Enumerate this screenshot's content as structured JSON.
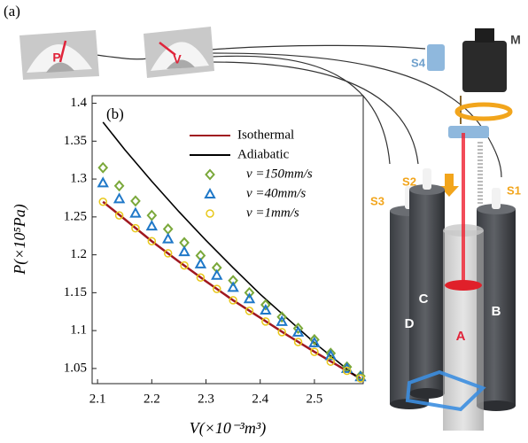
{
  "figure": {
    "panel_a": "(a)",
    "gauge_p": "P",
    "gauge_v": "V",
    "motor": "M",
    "sensor_4": "S4",
    "sensor_3": "S3",
    "sensor_2": "S2",
    "sensor_1": "S1",
    "cyl_d": "D",
    "cyl_c": "C",
    "cyl_a": "A",
    "cyl_b": "B"
  },
  "chart_data": {
    "type": "line",
    "annotation": "(b)",
    "x_label": "V(×10⁻³m³)",
    "y_label": "P(×10⁵Pa)",
    "xlim": [
      2.09,
      2.59
    ],
    "xticks": [
      2.1,
      2.2,
      2.3,
      2.4,
      2.5
    ],
    "ylim": [
      1.03,
      1.41
    ],
    "yticks": [
      1.05,
      1.1,
      1.15,
      1.2,
      1.25,
      1.3,
      1.35,
      1.4
    ],
    "series": [
      {
        "name": "Isothermal",
        "color": "#a01820",
        "marker": "line",
        "x": [
          2.11,
          2.15,
          2.2,
          2.25,
          2.3,
          2.35,
          2.4,
          2.45,
          2.5,
          2.55,
          2.585
        ],
        "values": [
          1.27,
          1.247,
          1.218,
          1.191,
          1.165,
          1.14,
          1.117,
          1.094,
          1.072,
          1.051,
          1.037
        ]
      },
      {
        "name": "Adiabatic",
        "color": "#000000",
        "marker": "line",
        "x": [
          2.11,
          2.15,
          2.2,
          2.25,
          2.3,
          2.35,
          2.4,
          2.45,
          2.5,
          2.55,
          2.585
        ],
        "values": [
          1.375,
          1.339,
          1.297,
          1.257,
          1.219,
          1.183,
          1.148,
          1.116,
          1.084,
          1.055,
          1.035
        ]
      },
      {
        "name": "v =150mm/s",
        "color": "#7aa83a",
        "marker": "diamond",
        "x": [
          2.11,
          2.14,
          2.17,
          2.2,
          2.23,
          2.26,
          2.29,
          2.32,
          2.35,
          2.38,
          2.41,
          2.44,
          2.47,
          2.5,
          2.53,
          2.56,
          2.585
        ],
        "values": [
          1.315,
          1.291,
          1.271,
          1.252,
          1.234,
          1.216,
          1.199,
          1.183,
          1.166,
          1.15,
          1.134,
          1.118,
          1.103,
          1.088,
          1.07,
          1.052,
          1.04
        ]
      },
      {
        "name": "v =40mm/s",
        "color": "#1f78c8",
        "marker": "triangle",
        "x": [
          2.11,
          2.14,
          2.17,
          2.2,
          2.23,
          2.26,
          2.29,
          2.32,
          2.35,
          2.38,
          2.41,
          2.44,
          2.47,
          2.5,
          2.53,
          2.56,
          2.585
        ],
        "values": [
          1.295,
          1.274,
          1.255,
          1.238,
          1.221,
          1.204,
          1.188,
          1.173,
          1.157,
          1.142,
          1.127,
          1.112,
          1.098,
          1.084,
          1.067,
          1.05,
          1.039
        ]
      },
      {
        "name": "v =1mm/s",
        "color": "#e8c81a",
        "marker": "circle",
        "x": [
          2.11,
          2.14,
          2.17,
          2.2,
          2.23,
          2.26,
          2.29,
          2.32,
          2.35,
          2.38,
          2.41,
          2.44,
          2.47,
          2.5,
          2.53,
          2.56,
          2.585
        ],
        "values": [
          1.27,
          1.252,
          1.235,
          1.218,
          1.202,
          1.186,
          1.17,
          1.155,
          1.14,
          1.126,
          1.112,
          1.098,
          1.085,
          1.072,
          1.059,
          1.047,
          1.037
        ]
      }
    ]
  }
}
